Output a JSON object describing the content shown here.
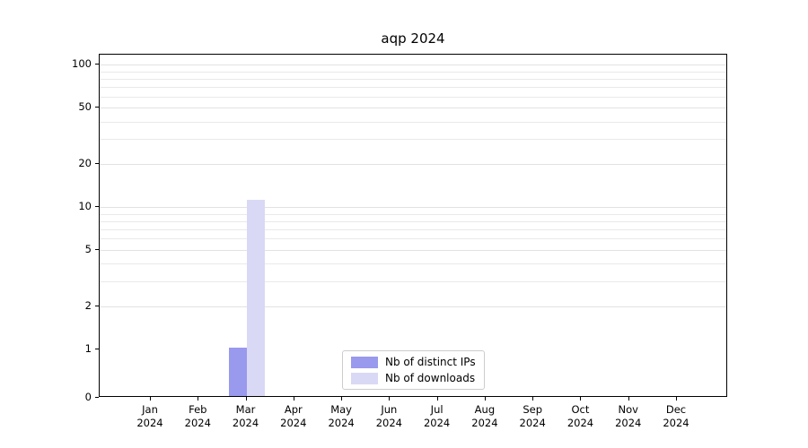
{
  "chart_data": {
    "type": "bar",
    "title": "aqp 2024",
    "categories": [
      "Jan",
      "Feb",
      "Mar",
      "Apr",
      "May",
      "Jun",
      "Jul",
      "Aug",
      "Sep",
      "Oct",
      "Nov",
      "Dec"
    ],
    "category_year": "2024",
    "series": [
      {
        "name": "Nb of distinct IPs",
        "color": "#9999ee",
        "values": [
          0,
          0,
          1,
          0,
          0,
          0,
          0,
          0,
          0,
          0,
          0,
          0
        ]
      },
      {
        "name": "Nb of downloads",
        "color": "#d9d9f6",
        "values": [
          0,
          0,
          11,
          0,
          0,
          0,
          0,
          0,
          0,
          0,
          0,
          0
        ]
      }
    ],
    "yticks": [
      0,
      1,
      2,
      5,
      10,
      20,
      50,
      100
    ],
    "yscale": "symlog",
    "ylim": [
      0,
      110
    ],
    "grid": "horizontal-log-minor",
    "legend_position": "lower-center-inside",
    "xlabel": "",
    "ylabel": ""
  }
}
